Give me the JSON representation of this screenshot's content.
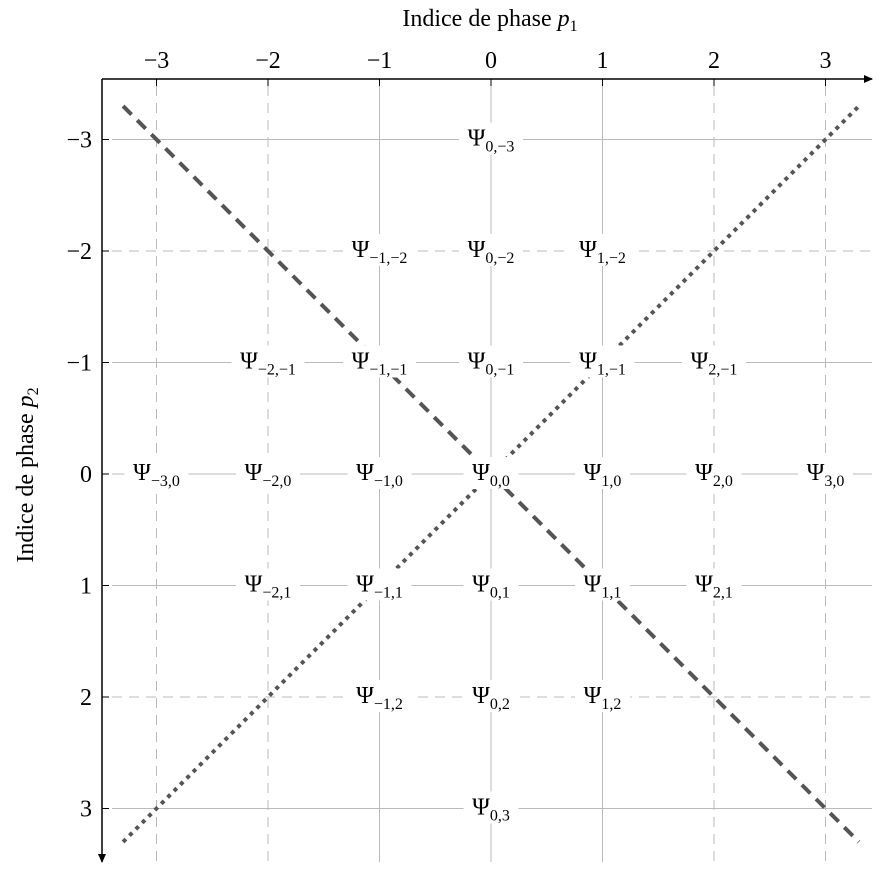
{
  "x_axis": {
    "title": "Indice de phase",
    "var": "p",
    "var_sub": "1",
    "ticks": [
      "−3",
      "−2",
      "−1",
      "0",
      "1",
      "2",
      "3"
    ]
  },
  "y_axis": {
    "title": "Indice de phase",
    "var": "p",
    "var_sub": "2",
    "ticks": [
      "−3",
      "−2",
      "−1",
      "0",
      "1",
      "2",
      "3"
    ]
  },
  "symbol": "Ψ",
  "nodes": [
    {
      "p1": 0,
      "p2": -3,
      "sub": "0,−3"
    },
    {
      "p1": -1,
      "p2": -2,
      "sub": "−1,−2"
    },
    {
      "p1": 0,
      "p2": -2,
      "sub": "0,−2"
    },
    {
      "p1": 1,
      "p2": -2,
      "sub": "1,−2"
    },
    {
      "p1": -2,
      "p2": -1,
      "sub": "−2,−1"
    },
    {
      "p1": -1,
      "p2": -1,
      "sub": "−1,−1"
    },
    {
      "p1": 0,
      "p2": -1,
      "sub": "0,−1"
    },
    {
      "p1": 1,
      "p2": -1,
      "sub": "1,−1"
    },
    {
      "p1": 2,
      "p2": -1,
      "sub": "2,−1"
    },
    {
      "p1": -3,
      "p2": 0,
      "sub": "−3,0"
    },
    {
      "p1": -2,
      "p2": 0,
      "sub": "−2,0"
    },
    {
      "p1": -1,
      "p2": 0,
      "sub": "−1,0"
    },
    {
      "p1": 0,
      "p2": 0,
      "sub": "0,0"
    },
    {
      "p1": 1,
      "p2": 0,
      "sub": "1,0"
    },
    {
      "p1": 2,
      "p2": 0,
      "sub": "2,0"
    },
    {
      "p1": 3,
      "p2": 0,
      "sub": "3,0"
    },
    {
      "p1": -2,
      "p2": 1,
      "sub": "−2,1"
    },
    {
      "p1": -1,
      "p2": 1,
      "sub": "−1,1"
    },
    {
      "p1": 0,
      "p2": 1,
      "sub": "0,1"
    },
    {
      "p1": 1,
      "p2": 1,
      "sub": "1,1"
    },
    {
      "p1": 2,
      "p2": 1,
      "sub": "2,1"
    },
    {
      "p1": -1,
      "p2": 2,
      "sub": "−1,2"
    },
    {
      "p1": 0,
      "p2": 2,
      "sub": "0,2"
    },
    {
      "p1": 1,
      "p2": 2,
      "sub": "1,2"
    },
    {
      "p1": 0,
      "p2": 3,
      "sub": "0,3"
    }
  ],
  "diagonals": [
    {
      "style": "dashed",
      "from": [
        -3.3,
        -3.3
      ],
      "to": [
        3.3,
        3.3
      ],
      "color": "#555555"
    },
    {
      "style": "dotted",
      "from": [
        -3.3,
        3.3
      ],
      "to": [
        3.3,
        -3.3
      ],
      "color": "#555555"
    }
  ],
  "colors": {
    "grid": "#bbbbbb",
    "axis": "#000000",
    "node_bg": "#ffffff"
  }
}
